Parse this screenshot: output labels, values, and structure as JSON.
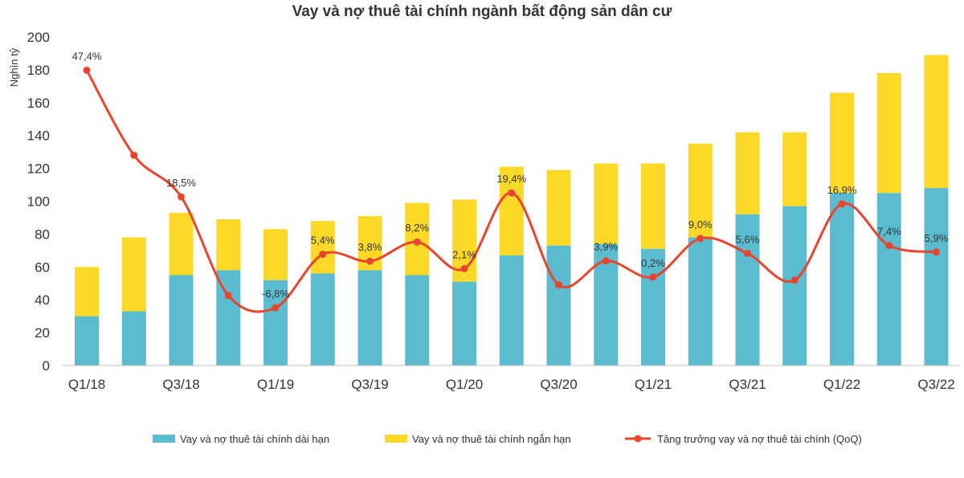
{
  "chart_data": {
    "type": "bar",
    "title": "Vay và nợ thuê tài chính ngành bất động sản dân cư",
    "ylabel": "Nghìn tỷ",
    "xlabel": "",
    "ylim": [
      0,
      200
    ],
    "yticks": [
      0,
      20,
      40,
      60,
      80,
      100,
      120,
      140,
      160,
      180,
      200
    ],
    "categories": [
      "Q1/18",
      "Q2/18",
      "Q3/18",
      "Q4/18",
      "Q1/19",
      "Q2/19",
      "Q3/19",
      "Q4/19",
      "Q1/20",
      "Q2/20",
      "Q3/20",
      "Q4/20",
      "Q1/21",
      "Q2/21",
      "Q3/21",
      "Q4/21",
      "Q1/22",
      "Q2/22",
      "Q3/22"
    ],
    "visible_tick_labels": [
      "Q1/18",
      "",
      "Q3/18",
      "",
      "Q1/19",
      "",
      "Q3/19",
      "",
      "Q1/20",
      "",
      "Q3/20",
      "",
      "Q1/21",
      "",
      "Q3/21",
      "",
      "Q1/22",
      "",
      "Q3/22"
    ],
    "series": [
      {
        "name": "Vay và nợ thuê tài chính dài hạn",
        "kind": "bar",
        "color": "#5bbcd0",
        "values": [
          30,
          33,
          55,
          58,
          52,
          56,
          58,
          55,
          51,
          67,
          73,
          74,
          71,
          78,
          92,
          97,
          105,
          105,
          108
        ]
      },
      {
        "name": "Vay và nợ thuê tài chính ngắn hạn",
        "kind": "bar",
        "color": "#fcd827",
        "values": [
          30,
          45,
          38,
          31,
          31,
          32,
          33,
          44,
          50,
          54,
          46,
          49,
          52,
          57,
          50,
          45,
          61,
          73,
          81
        ]
      },
      {
        "name": "Tăng trưởng vay và nợ thuê tài chính (QoQ)",
        "kind": "line",
        "color": "#e8452f",
        "values": [
          47.4,
          28.0,
          18.5,
          -4.0,
          -6.8,
          5.4,
          3.8,
          8.2,
          2.1,
          19.4,
          -1.6,
          3.9,
          0.2,
          9.0,
          5.6,
          -0.5,
          16.9,
          7.4,
          5.9
        ]
      }
    ],
    "line_labels": [
      "47,4%",
      "",
      "18,5%",
      "",
      "-6,8%",
      "5,4%",
      "3,8%",
      "8,2%",
      "2,1%",
      "19,4%",
      "",
      "3,9%",
      "0,2%",
      "9,0%",
      "5,6%",
      "",
      "16,9%",
      "7,4%",
      "5,9%"
    ],
    "legend_position": "bottom"
  }
}
